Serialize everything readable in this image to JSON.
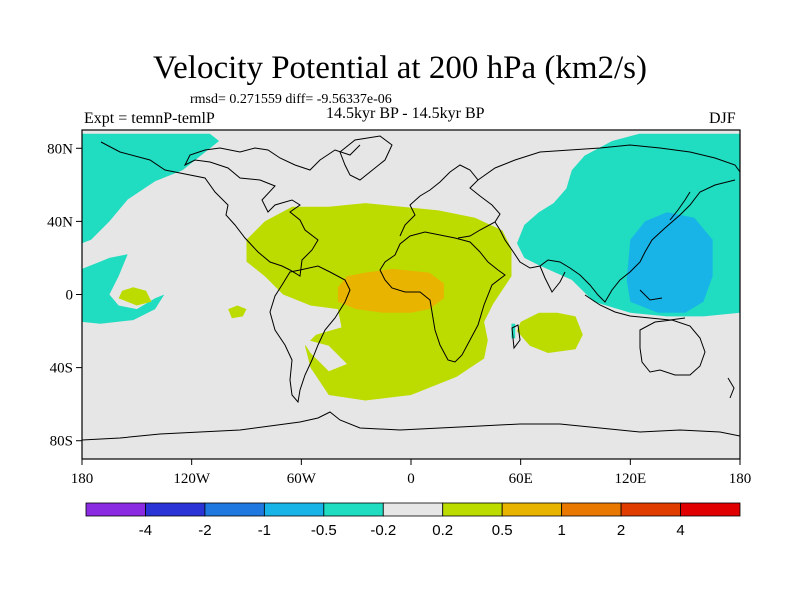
{
  "chart_data": {
    "type": "heatmap",
    "title": "Velocity Potential at 200 hPa (km2/s)",
    "stats": "rmsd= 0.271559 diff= -9.56337e-06",
    "period": "14.5kyr BP - 14.5kyr BP",
    "experiment": "Expt = temnP-temlP",
    "season": "DJF",
    "x_range": [
      -180,
      180
    ],
    "y_range": [
      -90,
      90
    ],
    "x_ticks": [
      {
        "value": -180,
        "label": "180"
      },
      {
        "value": -120,
        "label": "120W"
      },
      {
        "value": -60,
        "label": "60W"
      },
      {
        "value": 0,
        "label": "0"
      },
      {
        "value": 60,
        "label": "60E"
      },
      {
        "value": 120,
        "label": "120E"
      },
      {
        "value": 180,
        "label": "180"
      }
    ],
    "y_ticks": [
      {
        "value": 80,
        "label": "80N"
      },
      {
        "value": 40,
        "label": "40N"
      },
      {
        "value": 0,
        "label": "0"
      },
      {
        "value": -40,
        "label": "40S"
      },
      {
        "value": -80,
        "label": "80S"
      }
    ],
    "colorbar": {
      "labels": [
        "-4",
        "-2",
        "-1",
        "-0.5",
        "-0.2",
        "0.2",
        "0.5",
        "1",
        "2",
        "4"
      ],
      "colors": [
        "#8a2be2",
        "#2a34d6",
        "#1e78e0",
        "#18b4e8",
        "#20dcc0",
        "#e6e6e6",
        "#bcdc00",
        "#e8b400",
        "#e87800",
        "#e03c00",
        "#e00000"
      ]
    },
    "regions": [
      {
        "name": "north-pacific-negative",
        "level": "-0.5 to -0.2",
        "points": [
          [
            -180,
            88
          ],
          [
            -110,
            88
          ],
          [
            -105,
            84
          ],
          [
            -115,
            76
          ],
          [
            -125,
            68
          ],
          [
            -140,
            62
          ],
          [
            -155,
            52
          ],
          [
            -165,
            40
          ],
          [
            -175,
            30
          ],
          [
            -180,
            28
          ]
        ]
      },
      {
        "name": "east-pacific-negative",
        "level": "-0.5 to -0.2",
        "points": [
          [
            -180,
            -15
          ],
          [
            -180,
            14
          ],
          [
            -170,
            18
          ],
          [
            -165,
            20
          ],
          [
            -155,
            22
          ],
          [
            -160,
            10
          ],
          [
            -165,
            0
          ],
          [
            -160,
            -6
          ],
          [
            -150,
            -8
          ],
          [
            -140,
            -2
          ],
          [
            -135,
            0
          ],
          [
            -140,
            -8
          ],
          [
            -152,
            -14
          ],
          [
            -170,
            -16
          ]
        ]
      },
      {
        "name": "asia-pacific-negative",
        "level": "-0.5 to -0.2",
        "points": [
          [
            180,
            -10
          ],
          [
            180,
            88
          ],
          [
            125,
            88
          ],
          [
            110,
            84
          ],
          [
            95,
            76
          ],
          [
            88,
            68
          ],
          [
            85,
            58
          ],
          [
            78,
            50
          ],
          [
            70,
            45
          ],
          [
            62,
            38
          ],
          [
            58,
            28
          ],
          [
            62,
            20
          ],
          [
            70,
            16
          ],
          [
            88,
            8
          ],
          [
            100,
            -4
          ],
          [
            120,
            -10
          ],
          [
            140,
            -12
          ],
          [
            160,
            -12
          ]
        ]
      },
      {
        "name": "maritime-continent-negative",
        "level": "-1 to -0.5",
        "points": [
          [
            118,
            8
          ],
          [
            120,
            30
          ],
          [
            128,
            40
          ],
          [
            140,
            45
          ],
          [
            155,
            42
          ],
          [
            165,
            30
          ],
          [
            165,
            10
          ],
          [
            160,
            -4
          ],
          [
            150,
            -10
          ],
          [
            135,
            -10
          ],
          [
            120,
            -4
          ]
        ]
      },
      {
        "name": "west-pacific-positive-hole",
        "level": "0.2 to 0.5",
        "points": [
          [
            -160,
            -2
          ],
          [
            -150,
            -6
          ],
          [
            -142,
            -4
          ],
          [
            -145,
            2
          ],
          [
            -152,
            4
          ],
          [
            -158,
            2
          ]
        ]
      },
      {
        "name": "atlantic-africa-positive",
        "level": "0.2 to 0.5",
        "points": [
          [
            -90,
            30
          ],
          [
            -80,
            40
          ],
          [
            -65,
            48
          ],
          [
            -45,
            48
          ],
          [
            -25,
            50
          ],
          [
            -5,
            48
          ],
          [
            15,
            46
          ],
          [
            35,
            42
          ],
          [
            50,
            35
          ],
          [
            55,
            25
          ],
          [
            55,
            10
          ],
          [
            45,
            -5
          ],
          [
            40,
            -15
          ],
          [
            42,
            -25
          ],
          [
            40,
            -35
          ],
          [
            25,
            -45
          ],
          [
            0,
            -55
          ],
          [
            -25,
            -58
          ],
          [
            -45,
            -55
          ],
          [
            -55,
            -40
          ],
          [
            -58,
            -28
          ],
          [
            -52,
            -22
          ],
          [
            -38,
            -18
          ],
          [
            -40,
            -8
          ],
          [
            -55,
            -6
          ],
          [
            -70,
            0
          ],
          [
            -80,
            10
          ],
          [
            -90,
            18
          ]
        ]
      },
      {
        "name": "south-america-hole",
        "level": "-0.2 to 0.2",
        "points": [
          [
            -60,
            -24
          ],
          [
            -55,
            -32
          ],
          [
            -45,
            -42
          ],
          [
            -35,
            -38
          ],
          [
            -45,
            -28
          ]
        ]
      },
      {
        "name": "west-africa-max",
        "level": "0.5 to 1",
        "points": [
          [
            -40,
            4
          ],
          [
            -35,
            10
          ],
          [
            -25,
            12
          ],
          [
            -10,
            14
          ],
          [
            10,
            12
          ],
          [
            18,
            6
          ],
          [
            18,
            -2
          ],
          [
            10,
            -8
          ],
          [
            0,
            -10
          ],
          [
            -15,
            -10
          ],
          [
            -30,
            -8
          ],
          [
            -40,
            -4
          ]
        ]
      },
      {
        "name": "indian-ocean-positive",
        "level": "0.2 to 0.5",
        "points": [
          [
            60,
            -15
          ],
          [
            70,
            -10
          ],
          [
            80,
            -10
          ],
          [
            90,
            -12
          ],
          [
            94,
            -22
          ],
          [
            90,
            -30
          ],
          [
            75,
            -32
          ],
          [
            65,
            -28
          ],
          [
            58,
            -20
          ]
        ]
      },
      {
        "name": "pacific-small-positive",
        "level": "0.2 to 0.5",
        "points": [
          [
            -100,
            -8
          ],
          [
            -95,
            -6
          ],
          [
            -90,
            -8
          ],
          [
            -92,
            -12
          ],
          [
            -98,
            -13
          ]
        ]
      },
      {
        "name": "madagascar-negative",
        "level": "-0.5 to -0.2",
        "points": [
          [
            55,
            -16
          ],
          [
            57,
            -16
          ],
          [
            57,
            -24
          ],
          [
            55,
            -24
          ]
        ]
      }
    ]
  }
}
